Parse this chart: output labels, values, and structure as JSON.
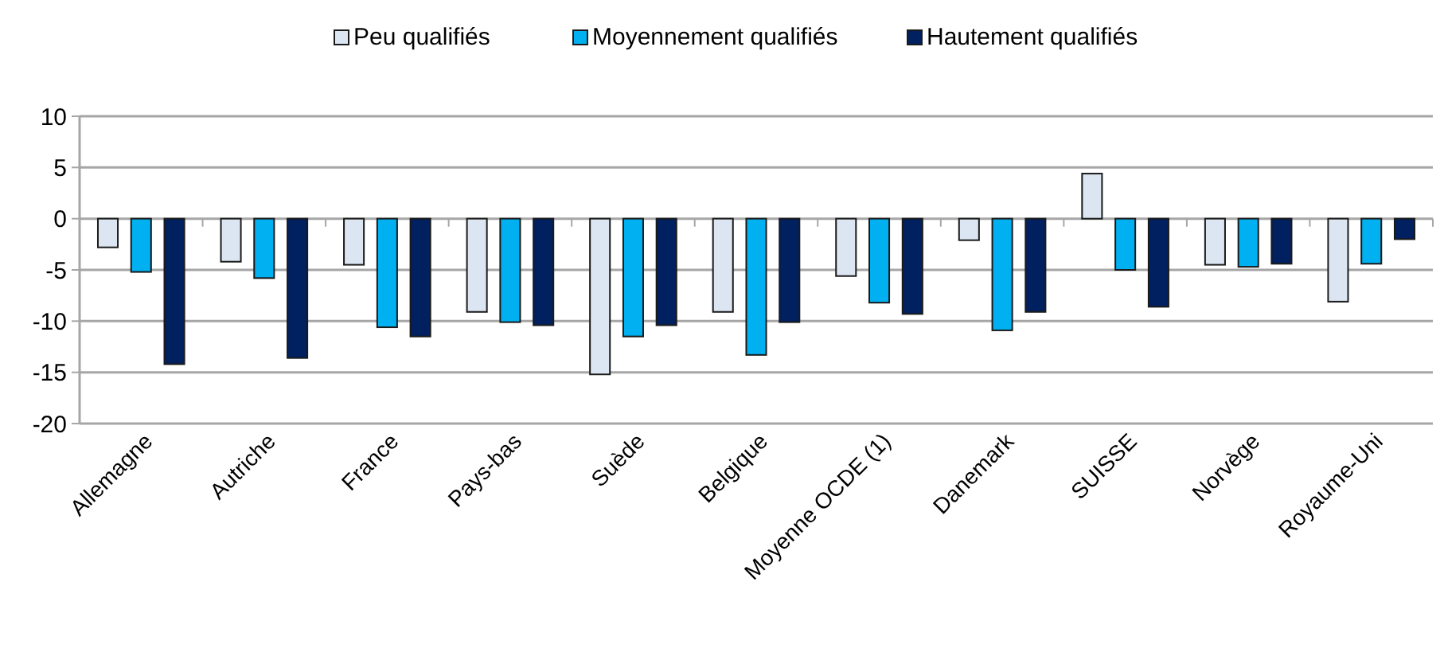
{
  "chart_data": {
    "type": "bar",
    "categories": [
      "Allemagne",
      "Autriche",
      "France",
      "Pays-bas",
      "Suède",
      "Belgique",
      "Moyenne OCDE (1)",
      "Danemark",
      "SUISSE",
      "Norvège",
      "Royaume-Uni"
    ],
    "series": [
      {
        "name": "Peu qualifiés",
        "color": "#dce6f2",
        "values": [
          -2.8,
          -4.2,
          -4.5,
          -9.1,
          -15.2,
          -9.1,
          -5.6,
          -2.1,
          4.4,
          -4.5,
          -8.1
        ]
      },
      {
        "name": "Moyennement qualifiés",
        "color": "#00b0f0",
        "values": [
          -5.2,
          -5.8,
          -10.6,
          -10.1,
          -11.5,
          -13.3,
          -8.2,
          -10.9,
          -5,
          -4.7,
          -4.4
        ]
      },
      {
        "name": "Hautement qualifiés",
        "color": "#002060",
        "values": [
          -14.2,
          -13.6,
          -11.5,
          -10.4,
          -10.4,
          -10.1,
          -9.3,
          -9.1,
          -8.6,
          -4.4,
          -2
        ]
      }
    ],
    "ylim": [
      -20,
      10
    ],
    "yticks": [
      -20,
      -15,
      -10,
      -5,
      0,
      5,
      10
    ],
    "grid": "y",
    "legend": "top"
  }
}
